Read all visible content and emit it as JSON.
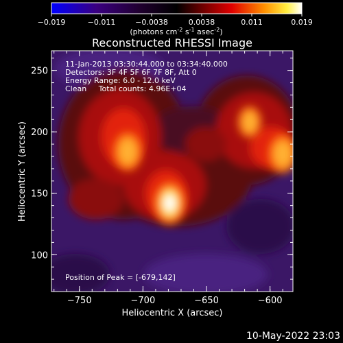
{
  "colorbar": {
    "ticks": [
      "-0.019",
      "-0.011",
      "-0.0038",
      "0.0038",
      "0.011",
      "0.019"
    ],
    "unit_main": "(photons cm",
    "unit_sup1": "-2",
    "unit_mid": " s",
    "unit_sup2": "-1",
    "unit_mid2": " asec",
    "unit_sup3": "-2",
    "unit_end": ")"
  },
  "chart_data": {
    "type": "heatmap",
    "title": "Reconstructed RHESSI Image",
    "xlabel": "Heliocentric X (arcsec)",
    "ylabel": "Heliocentric Y (arcsec)",
    "xlim": [
      -772,
      -582
    ],
    "ylim": [
      70,
      266
    ],
    "xticks": [
      -750,
      -700,
      -650,
      -600
    ],
    "yticks": [
      100,
      150,
      200,
      250
    ],
    "colormap": "black-purple-red-yellow-white",
    "annotations": [
      "11-Jan-2013 03:30:44.000 to 03:34:40.000",
      "Detectors: 3F 4F 5F 6F 7F 8F, Att 0",
      "Energy Range: 6.0 - 12.0 keV",
      "Clean     Total counts: 4.96E+04"
    ],
    "peak_label": "Position of Peak = [-679,142]",
    "sources": [
      {
        "x": -679,
        "y": 142,
        "intensity": 1.0
      },
      {
        "x": -712,
        "y": 184,
        "intensity": 0.8
      },
      {
        "x": -590,
        "y": 182,
        "intensity": 0.8
      },
      {
        "x": -616,
        "y": 208,
        "intensity": 0.45
      }
    ]
  },
  "footer": {
    "date": "10-May-2022 23:03"
  }
}
